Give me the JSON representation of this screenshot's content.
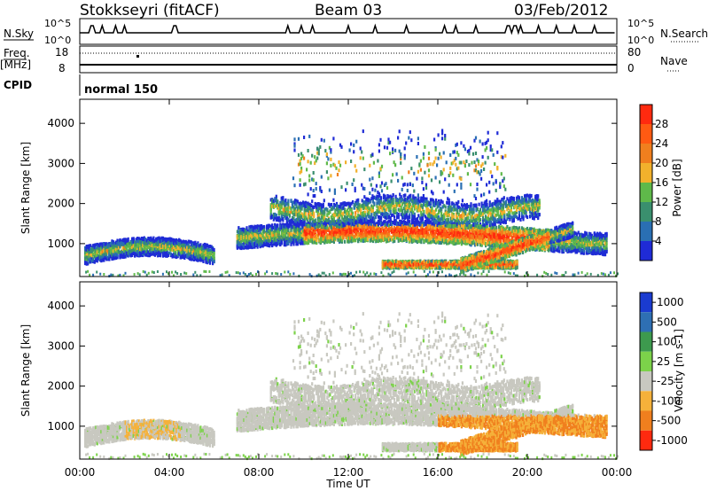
{
  "header": {
    "station": "Stokkseyri (fitACF)",
    "beam": "Beam 03",
    "date": "03/Feb/2012"
  },
  "status_panel": {
    "nsky_label": "N.Sky",
    "nsky_top": "10^5",
    "nsky_bottom": "10^0",
    "nsearch_label": "N.Search",
    "nsearch_top": "10^5",
    "nsearch_bottom": "10^0",
    "freq_label": "Freq.",
    "freq_unit": "[MHz]",
    "freq_top": "18",
    "freq_bottom": "8",
    "nave_label": "Nave",
    "nave_top": "80",
    "nave_bottom": "0",
    "cpid_label": "CPID",
    "cpid_value": "normal 150"
  },
  "chart_data": [
    {
      "type": "heatmap",
      "name": "power",
      "ylabel": "Slant Range [km]",
      "xlabel": "",
      "yticks": [
        "1000",
        "2000",
        "3000",
        "4000"
      ],
      "ylim": [
        180,
        4600
      ],
      "colorbar": {
        "label": "Power [dB]",
        "ticks": [
          "4",
          "8",
          "12",
          "16",
          "20",
          "24",
          "28"
        ],
        "colors": [
          "#1f2bd6",
          "#2a6fb3",
          "#3a8f6e",
          "#5fb94a",
          "#f2b12c",
          "#f07f1e",
          "#ff5a12",
          "#ff2a0f"
        ]
      }
    },
    {
      "type": "heatmap",
      "name": "velocity",
      "ylabel": "Slant Range [km]",
      "xlabel": "Time UT",
      "xticks": [
        "00:00",
        "04:00",
        "08:00",
        "12:00",
        "16:00",
        "20:00",
        "00:00"
      ],
      "yticks": [
        "1000",
        "2000",
        "3000",
        "4000"
      ],
      "ylim": [
        180,
        4600
      ],
      "colorbar": {
        "label": "Velocity [m s-1]",
        "ticks": [
          "1000",
          "500",
          "100",
          "25",
          "-25",
          "-100",
          "-500",
          "-1000"
        ],
        "colors": [
          "#1a3bd0",
          "#2e6fb3",
          "#3d9a4e",
          "#7cd24a",
          "#c8c8c0",
          "#f5b13a",
          "#f07f1e",
          "#ff2a0f"
        ]
      }
    }
  ]
}
